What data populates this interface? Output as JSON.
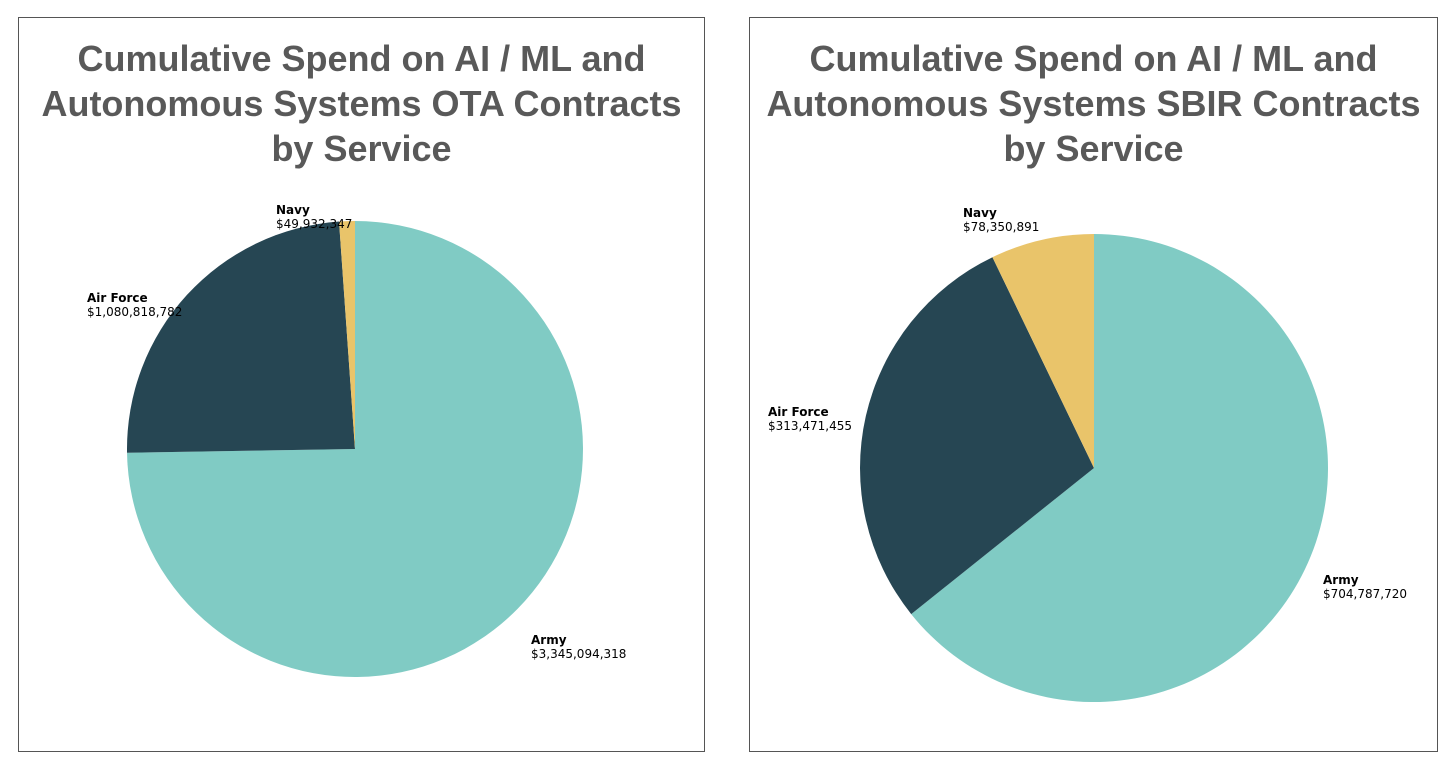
{
  "colors": {
    "Army": "#80cbc4",
    "Air Force": "#264653",
    "Navy": "#e9c46a"
  },
  "chart_data": [
    {
      "type": "pie",
      "title": "Cumulative Spend on AI / ML and\nAutonomous Systems OTA Contracts\nby Service",
      "slices": [
        {
          "label": "Army",
          "value": 3345094318,
          "value_label": "$3,345,094,318"
        },
        {
          "label": "Air Force",
          "value": 1080818782,
          "value_label": "$1,080,818,782"
        },
        {
          "label": "Navy",
          "value": 49932347,
          "value_label": "$49,932,347"
        }
      ]
    },
    {
      "type": "pie",
      "title": "Cumulative Spend on AI / ML and\nAutonomous Systems SBIR Contracts\nby Service",
      "slices": [
        {
          "label": "Army",
          "value": 704787720,
          "value_label": "$704,787,720"
        },
        {
          "label": "Air Force",
          "value": 313471455,
          "value_label": "$313,471,455"
        },
        {
          "label": "Navy",
          "value": 78350891,
          "value_label": "$78,350,891"
        }
      ]
    }
  ]
}
